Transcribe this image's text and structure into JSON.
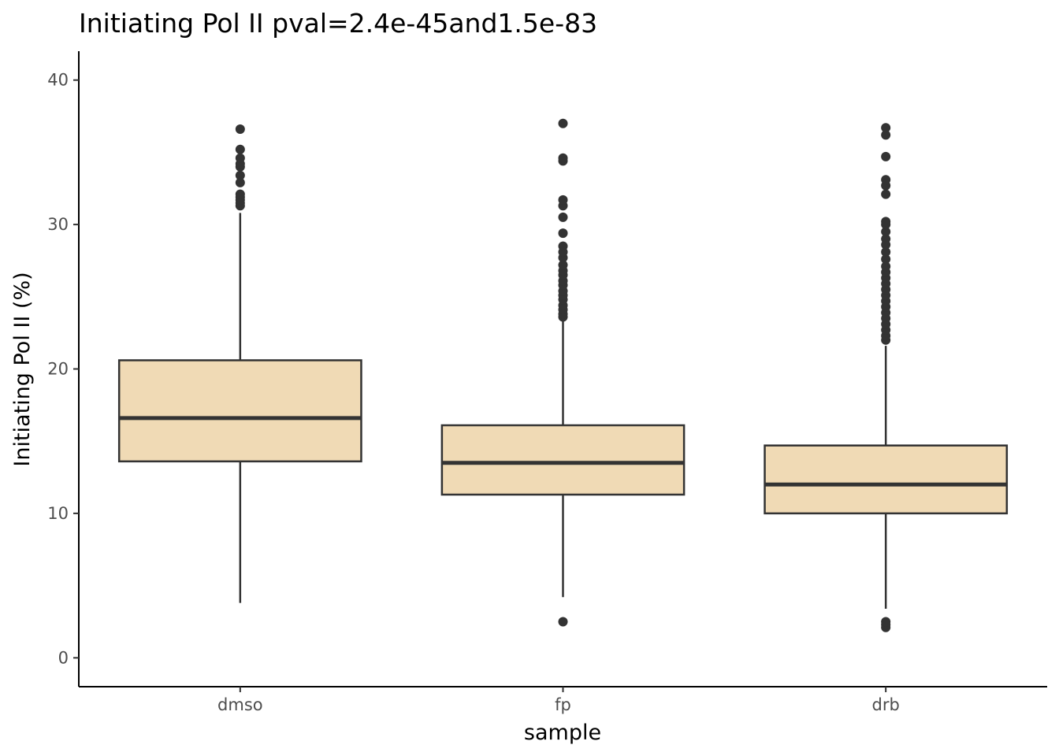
{
  "chart_data": {
    "type": "box",
    "title": "Initiating Pol II pval=2.4e-45and1.5e-83",
    "xlabel": "sample",
    "ylabel": "Initiating Pol II (%)",
    "ylim": [
      -2,
      42
    ],
    "yticks": [
      0,
      10,
      20,
      30,
      40
    ],
    "grid": false,
    "legend": "none",
    "colors": {
      "box_fill": "#f0dab5",
      "stroke": "#333333",
      "axis": "#000000"
    },
    "categories": [
      "dmso",
      "fp",
      "drb"
    ],
    "boxes": [
      {
        "category": "dmso",
        "whisker_low": 3.8,
        "q1": 13.6,
        "median": 16.6,
        "q3": 20.6,
        "whisker_high": 30.8,
        "outliers": [
          31.3,
          31.5,
          31.7,
          31.9,
          32.1,
          32.9,
          33.4,
          34.0,
          34.2,
          34.6,
          35.2,
          36.6
        ]
      },
      {
        "category": "fp",
        "whisker_low": 4.2,
        "q1": 11.3,
        "median": 13.5,
        "q3": 16.1,
        "whisker_high": 23.4,
        "outliers": [
          2.5,
          23.6,
          23.8,
          24.1,
          24.4,
          24.8,
          25.1,
          25.4,
          25.8,
          26.1,
          26.5,
          26.8,
          27.2,
          27.7,
          28.1,
          28.5,
          29.4,
          30.5,
          31.3,
          31.7,
          34.4,
          34.6,
          37.0
        ]
      },
      {
        "category": "drb",
        "whisker_low": 3.4,
        "q1": 10.0,
        "median": 12.0,
        "q3": 14.7,
        "whisker_high": 21.6,
        "outliers": [
          2.1,
          2.3,
          2.5,
          22.0,
          22.3,
          22.7,
          23.1,
          23.5,
          23.9,
          24.3,
          24.7,
          25.1,
          25.5,
          25.9,
          26.3,
          26.7,
          27.1,
          27.6,
          28.1,
          28.6,
          29.0,
          29.5,
          30.0,
          30.2,
          32.1,
          32.7,
          33.1,
          34.7,
          36.2,
          36.7
        ]
      }
    ]
  }
}
